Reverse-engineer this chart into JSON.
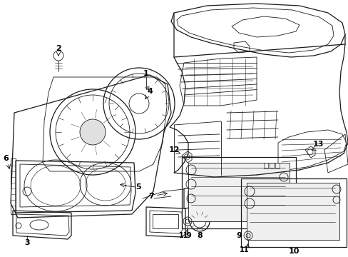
{
  "bg_color": "#ffffff",
  "line_color": "#1a1a1a",
  "fig_width": 4.89,
  "fig_height": 3.6,
  "dpi": 100
}
